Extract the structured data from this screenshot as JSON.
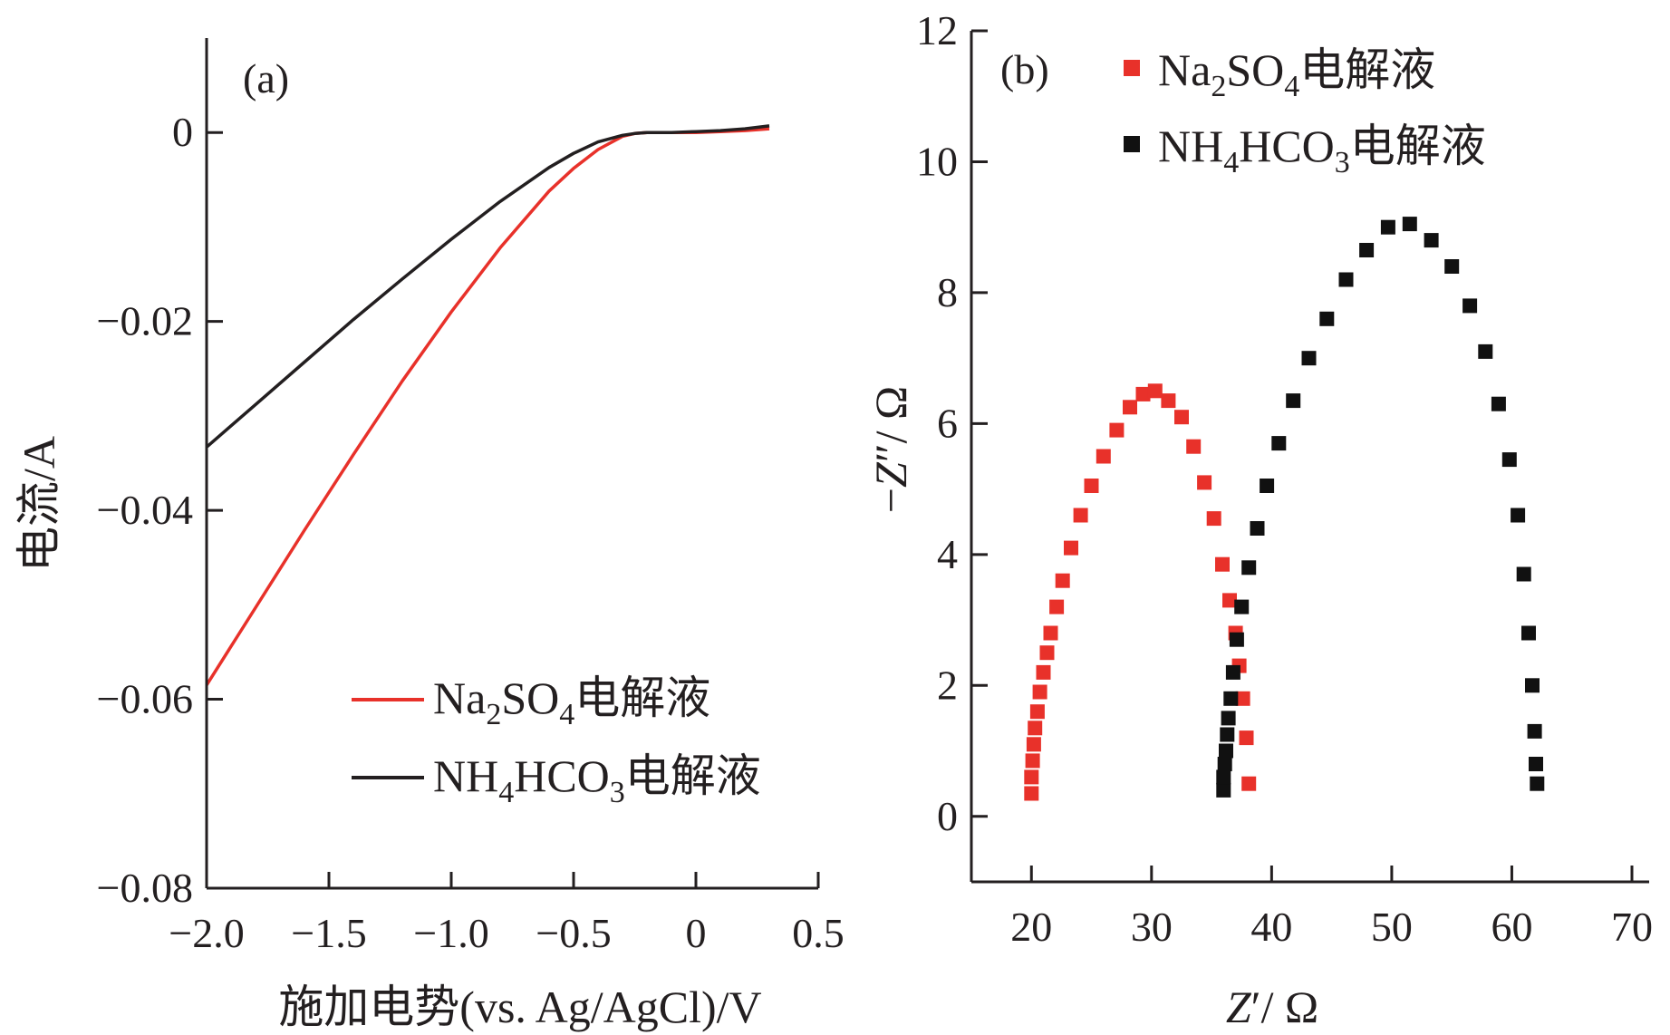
{
  "chart_data": [
    {
      "type": "line",
      "panel_label": "(a)",
      "xlabel": "施加电势(vs. Ag/AgCl)/V",
      "ylabel": "电流/A",
      "xlim": [
        -2.0,
        0.5
      ],
      "ylim": [
        -0.08,
        0.01
      ],
      "x_ticks": [
        -2.0,
        -1.5,
        -1.0,
        -0.5,
        0,
        0.5
      ],
      "x_tick_labels": [
        "−2.0",
        "−1.5",
        "−1.0",
        "−0.5",
        "0",
        "0.5"
      ],
      "y_ticks": [
        0,
        -0.02,
        -0.04,
        -0.06,
        -0.08
      ],
      "y_tick_labels": [
        "0",
        "−0.02",
        "−0.04",
        "−0.06",
        "−0.08"
      ],
      "grid": false,
      "legend_position": "bottom-right",
      "series": [
        {
          "name_parts": [
            [
              "Na",
              ""
            ],
            [
              "2",
              "sub"
            ],
            [
              "SO",
              ""
            ],
            [
              "4",
              "sub"
            ],
            [
              "电解液",
              ""
            ]
          ],
          "color": "#e8312a",
          "x": [
            -2.0,
            -1.8,
            -1.6,
            -1.4,
            -1.2,
            -1.0,
            -0.8,
            -0.6,
            -0.5,
            -0.4,
            -0.3,
            -0.25,
            -0.2,
            -0.1,
            0.0,
            0.1,
            0.2,
            0.3
          ],
          "y": [
            -0.0585,
            -0.0503,
            -0.0421,
            -0.0341,
            -0.0263,
            -0.019,
            -0.0122,
            -0.0062,
            -0.0038,
            -0.0018,
            -0.0004,
            -0.0001,
            0.0,
            0.0,
            0.0,
            0.0001,
            0.0002,
            0.0004
          ]
        },
        {
          "name_parts": [
            [
              "NH",
              ""
            ],
            [
              "4",
              "sub"
            ],
            [
              "HCO",
              ""
            ],
            [
              "3",
              "sub"
            ],
            [
              "电解液",
              ""
            ]
          ],
          "color": "#231f20",
          "x": [
            -2.0,
            -1.8,
            -1.6,
            -1.4,
            -1.2,
            -1.0,
            -0.8,
            -0.6,
            -0.5,
            -0.4,
            -0.3,
            -0.25,
            -0.2,
            -0.1,
            0.0,
            0.1,
            0.2,
            0.3
          ],
          "y": [
            -0.0333,
            -0.0288,
            -0.0243,
            -0.0198,
            -0.0155,
            -0.0113,
            -0.0073,
            -0.0037,
            -0.0022,
            -0.001,
            -0.0003,
            -0.0001,
            0.0,
            0.0,
            0.0001,
            0.0002,
            0.0004,
            0.0007
          ]
        }
      ]
    },
    {
      "type": "scatter",
      "panel_label": "(b)",
      "xlabel_parts": [
        [
          "Z",
          "italic"
        ],
        [
          "′/ Ω",
          ""
        ]
      ],
      "ylabel_parts": [
        [
          "−",
          ""
        ],
        [
          "Z",
          "italic"
        ],
        [
          "″/ Ω",
          ""
        ]
      ],
      "xlim": [
        15,
        70
      ],
      "ylim": [
        -1,
        12
      ],
      "x_ticks": [
        20,
        30,
        40,
        50,
        60,
        70
      ],
      "x_tick_labels": [
        "20",
        "30",
        "40",
        "50",
        "60",
        "70"
      ],
      "y_ticks": [
        0,
        2,
        4,
        6,
        8,
        10,
        12
      ],
      "y_tick_labels": [
        "0",
        "2",
        "4",
        "6",
        "8",
        "10",
        "12"
      ],
      "grid": false,
      "legend_position": "top-right",
      "series": [
        {
          "name_parts": [
            [
              "Na",
              ""
            ],
            [
              "2",
              "sub"
            ],
            [
              "SO",
              ""
            ],
            [
              "4",
              "sub"
            ],
            [
              "电解液",
              ""
            ]
          ],
          "color": "#e8312a",
          "x": [
            20.0,
            20.0,
            20.1,
            20.2,
            20.3,
            20.5,
            20.7,
            21.0,
            21.3,
            21.6,
            22.1,
            22.6,
            23.3,
            24.1,
            25.0,
            26.0,
            27.1,
            28.2,
            29.3,
            30.3,
            31.4,
            32.5,
            33.5,
            34.4,
            35.2,
            35.9,
            36.5,
            37.0,
            37.3,
            37.6,
            37.9,
            38.1
          ],
          "y": [
            0.35,
            0.6,
            0.85,
            1.1,
            1.35,
            1.6,
            1.9,
            2.2,
            2.5,
            2.8,
            3.2,
            3.6,
            4.1,
            4.6,
            5.05,
            5.5,
            5.9,
            6.25,
            6.45,
            6.5,
            6.35,
            6.1,
            5.65,
            5.1,
            4.55,
            3.85,
            3.3,
            2.8,
            2.3,
            1.8,
            1.2,
            0.5
          ]
        },
        {
          "name_parts": [
            [
              "NH",
              ""
            ],
            [
              "4",
              "sub"
            ],
            [
              "HCO",
              ""
            ],
            [
              "3",
              "sub"
            ],
            [
              "电解液",
              ""
            ]
          ],
          "color": "#111111",
          "x": [
            36.0,
            36.0,
            36.1,
            36.2,
            36.3,
            36.4,
            36.6,
            36.8,
            37.1,
            37.5,
            38.1,
            38.8,
            39.6,
            40.6,
            41.8,
            43.1,
            44.6,
            46.2,
            47.9,
            49.7,
            51.5,
            53.3,
            55.0,
            56.5,
            57.8,
            58.9,
            59.8,
            60.5,
            61.0,
            61.4,
            61.7,
            61.9,
            62.0,
            62.1
          ],
          "y": [
            0.4,
            0.6,
            0.8,
            1.0,
            1.25,
            1.5,
            1.8,
            2.2,
            2.7,
            3.2,
            3.8,
            4.4,
            5.05,
            5.7,
            6.35,
            7.0,
            7.6,
            8.2,
            8.65,
            9.0,
            9.05,
            8.8,
            8.4,
            7.8,
            7.1,
            6.3,
            5.45,
            4.6,
            3.7,
            2.8,
            2.0,
            1.3,
            0.8,
            0.5
          ]
        }
      ]
    }
  ]
}
